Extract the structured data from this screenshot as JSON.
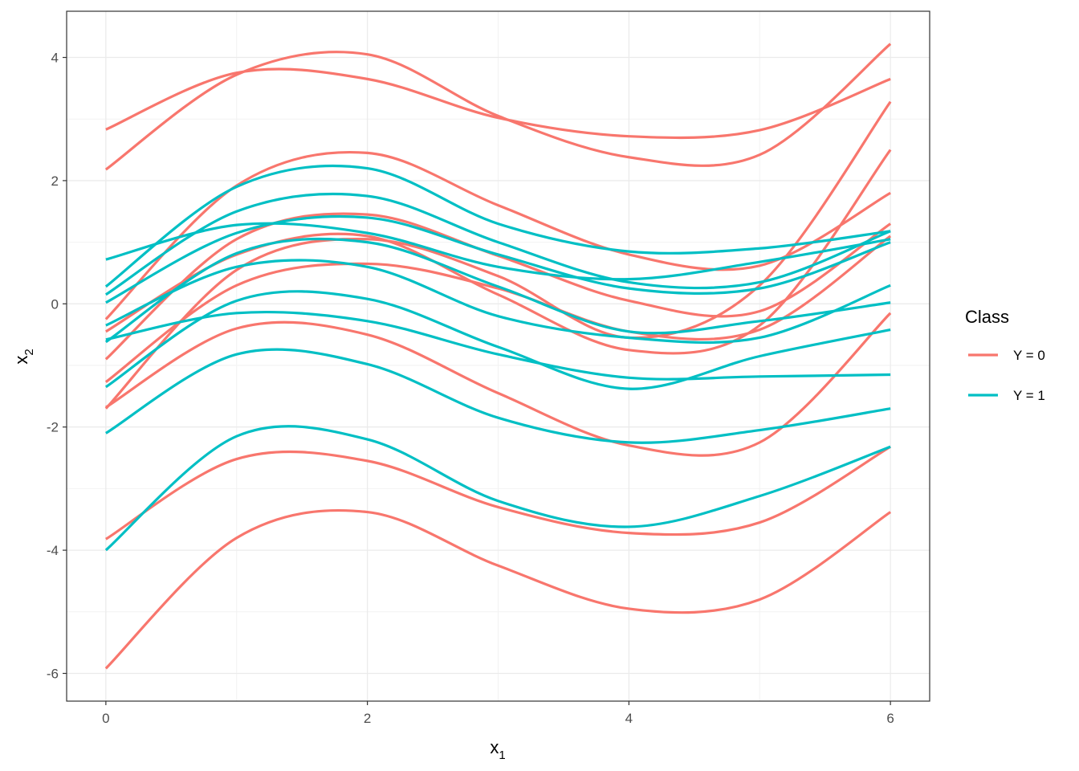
{
  "chart_data": {
    "type": "line",
    "xlabel": "x",
    "xlabel_sub": "1",
    "ylabel": "x",
    "ylabel_sub": "2",
    "xlim": [
      -0.3,
      6.3
    ],
    "ylim": [
      -6.45,
      4.75
    ],
    "x_ticks": [
      0,
      2,
      4,
      6
    ],
    "x_tick_labels": [
      "0",
      "2",
      "4",
      "6"
    ],
    "y_ticks": [
      -6,
      -4,
      -2,
      0,
      2,
      4
    ],
    "y_tick_labels": [
      "-6",
      "-4",
      "-2",
      "0",
      "2",
      "4"
    ],
    "grid": true,
    "x": [
      0,
      1,
      2,
      3,
      4,
      5,
      6
    ],
    "legend": {
      "title": "Class",
      "position": "right",
      "entries": [
        {
          "label": "Y = 0",
          "color": "#F8766D"
        },
        {
          "label": "Y = 1",
          "color": "#00BFC4"
        }
      ]
    },
    "series": [
      {
        "class": "Y = 0",
        "values": [
          2.83,
          3.75,
          3.65,
          3.02,
          2.72,
          2.82,
          3.65
        ]
      },
      {
        "class": "Y = 0",
        "values": [
          2.18,
          3.72,
          4.05,
          3.05,
          2.38,
          2.42,
          4.22
        ]
      },
      {
        "class": "Y = 0",
        "values": [
          -0.25,
          1.92,
          2.45,
          1.6,
          0.8,
          0.62,
          1.8
        ]
      },
      {
        "class": "Y = 0",
        "values": [
          -0.9,
          1.05,
          1.45,
          0.78,
          0.05,
          -0.12,
          1.3
        ]
      },
      {
        "class": "Y = 0",
        "values": [
          -1.7,
          0.55,
          1.05,
          0.45,
          -0.55,
          0.3,
          3.28
        ]
      },
      {
        "class": "Y = 0",
        "values": [
          -1.27,
          0.3,
          0.65,
          0.25,
          -0.45,
          -0.42,
          1.1
        ]
      },
      {
        "class": "Y = 0",
        "values": [
          -1.68,
          -0.4,
          -0.5,
          -1.45,
          -2.3,
          -2.25,
          -0.15
        ]
      },
      {
        "class": "Y = 0",
        "values": [
          -3.82,
          -2.52,
          -2.55,
          -3.3,
          -3.72,
          -3.55,
          -2.32
        ]
      },
      {
        "class": "Y = 0",
        "values": [
          -5.92,
          -3.8,
          -3.38,
          -4.25,
          -4.95,
          -4.8,
          -3.38
        ]
      },
      {
        "class": "Y = 0",
        "values": [
          -0.45,
          0.8,
          1.1,
          0.15,
          -0.75,
          -0.35,
          2.5
        ]
      },
      {
        "class": "Y = 1",
        "values": [
          0.72,
          1.28,
          1.15,
          0.6,
          0.4,
          0.68,
          1.05
        ]
      },
      {
        "class": "Y = 1",
        "values": [
          0.28,
          1.9,
          2.2,
          1.3,
          0.85,
          0.9,
          1.18
        ]
      },
      {
        "class": "Y = 1",
        "values": [
          0.15,
          1.5,
          1.75,
          1.0,
          0.35,
          0.35,
          1.18
        ]
      },
      {
        "class": "Y = 1",
        "values": [
          0.02,
          1.15,
          1.4,
          0.8,
          0.25,
          0.25,
          1.0
        ]
      },
      {
        "class": "Y = 1",
        "values": [
          -0.35,
          0.6,
          0.6,
          -0.2,
          -0.55,
          -0.55,
          0.3
        ]
      },
      {
        "class": "Y = 1",
        "values": [
          -0.62,
          0.82,
          1.0,
          0.28,
          -0.45,
          -0.28,
          0.02
        ]
      },
      {
        "class": "Y = 1",
        "values": [
          -0.58,
          -0.15,
          -0.28,
          -0.82,
          -1.2,
          -1.18,
          -1.15
        ]
      },
      {
        "class": "Y = 1",
        "values": [
          -1.35,
          0.05,
          0.08,
          -0.7,
          -1.38,
          -0.85,
          -0.42
        ]
      },
      {
        "class": "Y = 1",
        "values": [
          -2.1,
          -0.82,
          -0.98,
          -1.85,
          -2.25,
          -2.05,
          -1.7
        ]
      },
      {
        "class": "Y = 1",
        "values": [
          -4.0,
          -2.15,
          -2.2,
          -3.2,
          -3.62,
          -3.12,
          -2.32
        ]
      }
    ]
  }
}
